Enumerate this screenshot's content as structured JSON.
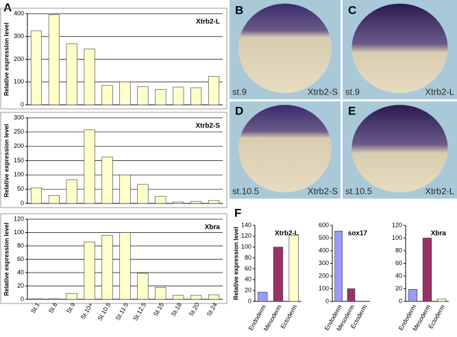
{
  "panel_labels": [
    "A",
    "B",
    "C",
    "D",
    "E",
    "F"
  ],
  "images": [
    {
      "stage": "st.9",
      "gene": "Xtrb2-S"
    },
    {
      "stage": "st.9",
      "gene": "Xtrb2-L"
    },
    {
      "stage": "st.10.5",
      "gene": "Xtrb2-S"
    },
    {
      "stage": "st.10.5",
      "gene": "Xtrb2-L"
    }
  ],
  "chart_data": [
    {
      "type": "bar",
      "title": "Xtrb2-L",
      "y_label": "Relative expression level",
      "values": [
        325,
        395,
        268,
        245,
        85,
        100,
        80,
        68,
        78,
        75,
        125
      ],
      "color": "#ffffcc",
      "ylim": [
        0,
        400
      ],
      "yticks": [
        0,
        100,
        200,
        300,
        400
      ],
      "grid": true
    },
    {
      "type": "bar",
      "title": "Xtrb2-S",
      "y_label": "Relative expression level",
      "values": [
        55,
        28,
        83,
        258,
        163,
        100,
        67,
        25,
        5,
        7,
        10
      ],
      "color": "#ffffcc",
      "ylim": [
        0,
        300
      ],
      "yticks": [
        0,
        50,
        100,
        150,
        200,
        250,
        300
      ],
      "grid": true
    },
    {
      "type": "bar",
      "title": "Xbra",
      "y_label": "Relative expression level",
      "categories": [
        "St.1",
        "St.6",
        "St.9",
        "St.10+",
        "St.10.5",
        "St.11.5",
        "St.12.5",
        "St.15",
        "St.18",
        "St.20",
        "St.24"
      ],
      "values": [
        1,
        1,
        9,
        86,
        96,
        100,
        39,
        18,
        6,
        6,
        7
      ],
      "color": "#ffffcc",
      "ylim": [
        0,
        120
      ],
      "yticks": [
        0,
        20,
        40,
        60,
        80,
        100,
        120
      ],
      "grid": true
    },
    {
      "type": "bar",
      "title": "Xtrb2-L",
      "y_label": "Relative expression level",
      "categories": [
        "Endoderm",
        "Mesoderm",
        "Ectoderm"
      ],
      "values": [
        17,
        100,
        122
      ],
      "colors": [
        "#9999ff",
        "#993366",
        "#ffffcc"
      ],
      "ylim": [
        0,
        140
      ],
      "yticks": [
        0,
        20,
        40,
        60,
        80,
        100,
        120,
        140
      ],
      "grid": false
    },
    {
      "type": "bar",
      "title": "sox17",
      "categories": [
        "Endoderm",
        "Mesoderm",
        "Ectoderm"
      ],
      "values": [
        555,
        100,
        2
      ],
      "colors": [
        "#9999ff",
        "#993366",
        "#ffffcc"
      ],
      "ylim": [
        0,
        600
      ],
      "yticks": [
        0,
        100,
        200,
        300,
        400,
        500,
        600
      ],
      "grid": false
    },
    {
      "type": "bar",
      "title": "Xbra",
      "categories": [
        "Endoderm",
        "Mesoderm",
        "Ectoderm"
      ],
      "values": [
        19,
        100,
        4
      ],
      "colors": [
        "#9999ff",
        "#993366",
        "#ffffcc"
      ],
      "ylim": [
        0,
        120
      ],
      "yticks": [
        0,
        20,
        40,
        60,
        80,
        100,
        120
      ],
      "grid": false
    }
  ]
}
